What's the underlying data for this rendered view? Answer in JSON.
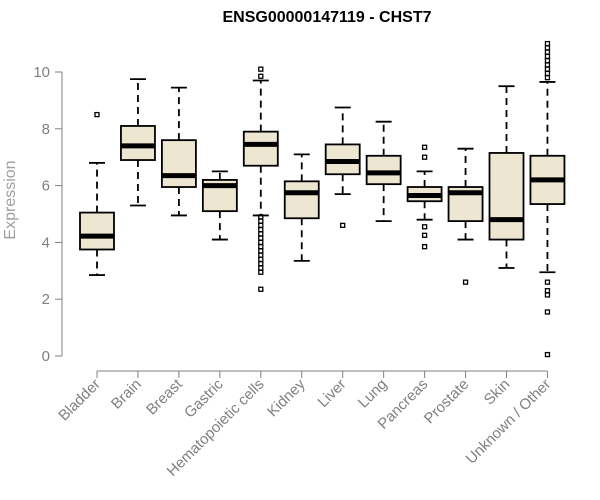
{
  "chart_data": {
    "type": "box",
    "title": "ENSG00000147119 - CHST7",
    "xlabel": "",
    "ylabel": "Expression",
    "ylim": [
      0,
      10
    ],
    "yticks": [
      0,
      2,
      4,
      6,
      8,
      10
    ],
    "box_fill": "#ede6d0",
    "box_stroke": "#000000",
    "axis_color": "#808080",
    "categories": [
      "Bladder",
      "Brain",
      "Breast",
      "Gastric",
      "Hematopoietic cells",
      "Kidney",
      "Liver",
      "Lung",
      "Pancreas",
      "Prostate",
      "Skin",
      "Unknown / Other"
    ],
    "boxes": [
      {
        "whisker_low": 2.85,
        "q1": 3.75,
        "median": 4.22,
        "q3": 5.05,
        "whisker_high": 6.8,
        "outliers": [
          8.5
        ]
      },
      {
        "whisker_low": 5.3,
        "q1": 6.9,
        "median": 7.4,
        "q3": 8.1,
        "whisker_high": 9.75,
        "outliers": []
      },
      {
        "whisker_low": 4.95,
        "q1": 5.95,
        "median": 6.35,
        "q3": 7.6,
        "whisker_high": 9.45,
        "outliers": []
      },
      {
        "whisker_low": 4.1,
        "q1": 5.1,
        "median": 6.0,
        "q3": 6.2,
        "whisker_high": 6.5,
        "outliers": []
      },
      {
        "whisker_low": 4.95,
        "q1": 6.7,
        "median": 7.45,
        "q3": 7.9,
        "whisker_high": 9.7,
        "outliers": [
          10.1,
          9.85,
          4.9,
          4.75,
          4.6,
          4.45,
          4.3,
          4.15,
          4.0,
          3.85,
          3.7,
          3.55,
          3.4,
          3.25,
          3.1,
          2.95,
          2.35
        ]
      },
      {
        "whisker_low": 3.35,
        "q1": 4.85,
        "median": 5.75,
        "q3": 6.15,
        "whisker_high": 7.1,
        "outliers": []
      },
      {
        "whisker_low": 5.7,
        "q1": 6.4,
        "median": 6.85,
        "q3": 7.45,
        "whisker_high": 8.75,
        "outliers": [
          4.6
        ]
      },
      {
        "whisker_low": 4.75,
        "q1": 6.05,
        "median": 6.45,
        "q3": 7.05,
        "whisker_high": 8.25,
        "outliers": []
      },
      {
        "whisker_low": 4.8,
        "q1": 5.45,
        "median": 5.65,
        "q3": 5.95,
        "whisker_high": 6.5,
        "outliers": [
          7.35,
          7.0,
          4.55,
          4.25,
          3.85
        ]
      },
      {
        "whisker_low": 4.1,
        "q1": 4.75,
        "median": 5.75,
        "q3": 5.95,
        "whisker_high": 7.3,
        "outliers": [
          2.6
        ]
      },
      {
        "whisker_low": 3.1,
        "q1": 4.1,
        "median": 4.8,
        "q3": 7.15,
        "whisker_high": 9.5,
        "outliers": []
      },
      {
        "whisker_low": 2.95,
        "q1": 5.35,
        "median": 6.2,
        "q3": 7.05,
        "whisker_high": 9.65,
        "outliers": [
          11.0,
          10.85,
          10.7,
          10.55,
          10.4,
          10.25,
          10.1,
          9.95,
          9.8,
          2.6,
          2.3,
          2.15,
          1.55,
          0.05
        ]
      }
    ]
  }
}
